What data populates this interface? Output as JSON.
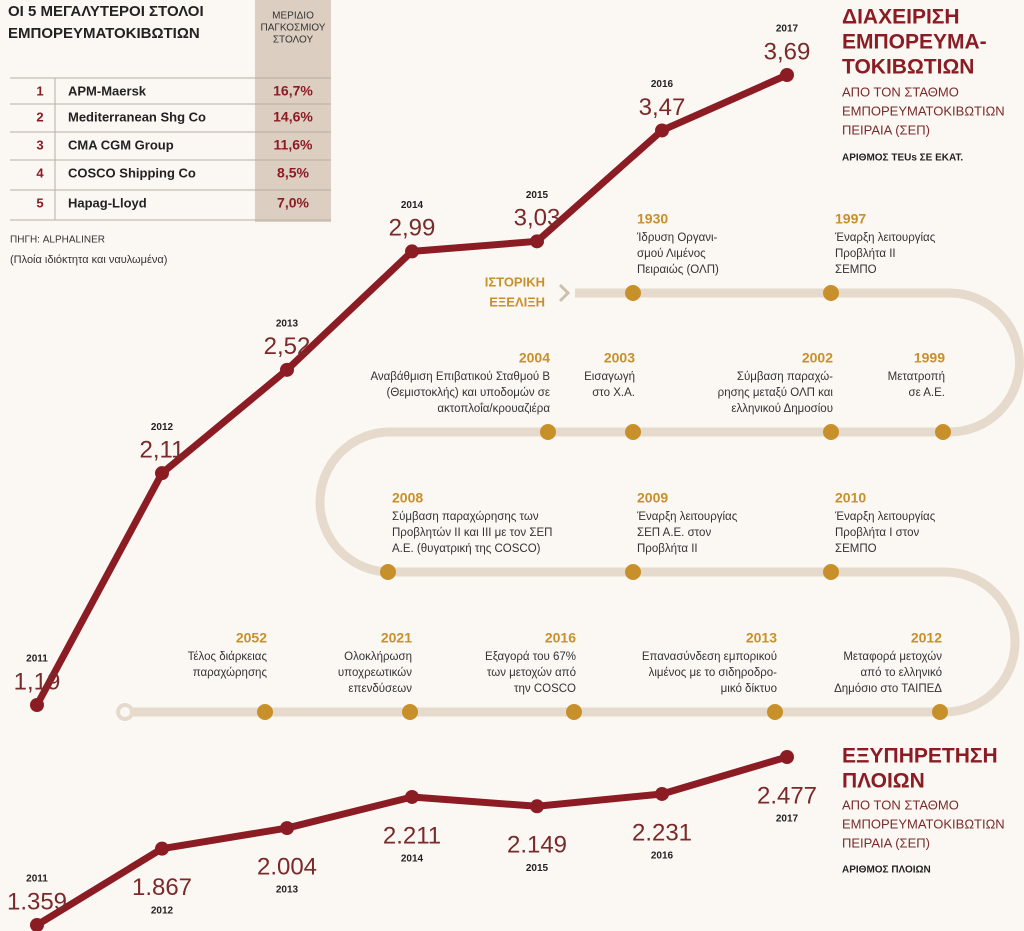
{
  "chart_data": [
    {
      "type": "line",
      "title": [
        "ΔΙΑΧΕΙΡΙΣΗ",
        "ΕΜΠΟΡΕΥΜΑ-",
        "ΤΟΚΙΒΩΤΙΩΝ"
      ],
      "subtitle": [
        "ΑΠΟ ΤΟΝ ΣΤΑΘΜΟ",
        "ΕΜΠΟΡΕΥΜΑΤΟΚΙΒΩΤΙΩΝ",
        "ΠΕΙΡΑΙΑ (ΣΕΠ)"
      ],
      "unit_label": "ΑΡΙΘΜΟΣ TEUs ΣΕ ΕΚΑΤ.",
      "x": [
        2011,
        2012,
        2013,
        2014,
        2015,
        2016,
        2017
      ],
      "values": [
        1.19,
        2.11,
        2.52,
        2.99,
        3.03,
        3.47,
        3.69
      ],
      "value_labels": [
        "1,19",
        "2,11",
        "2,52",
        "2,99",
        "3,03",
        "3,47",
        "3,69"
      ],
      "color": "#8b1c24"
    },
    {
      "type": "line",
      "title": [
        "ΕΞΥΠΗΡΕΤΗΣΗ",
        "ΠΛΟΙΩΝ"
      ],
      "subtitle": [
        "ΑΠΟ ΤΟΝ ΣΤΑΘΜΟ",
        "ΕΜΠΟΡΕΥΜΑΤΟΚΙΒΩΤΙΩΝ",
        "ΠΕΙΡΑΙΑ (ΣΕΠ)"
      ],
      "unit_label": "ΑΡΙΘΜΟΣ ΠΛΟΙΩΝ",
      "x": [
        2011,
        2012,
        2013,
        2014,
        2015,
        2016,
        2017
      ],
      "values": [
        1359,
        1867,
        2004,
        2211,
        2149,
        2231,
        2477
      ],
      "value_labels": [
        "1.359",
        "1.867",
        "2.004",
        "2.211",
        "2.149",
        "2.231",
        "2.477"
      ],
      "color": "#8b1c24"
    }
  ],
  "table": {
    "title": [
      "ΟΙ 5 ΜΕΓΑΛΥΤΕΡΟΙ ΣΤΟΛΟΙ",
      "ΕΜΠΟΡΕΥΜΑΤΟΚΙΒΩΤΙΩΝ"
    ],
    "header": [
      "ΜΕΡΙΔΙΟ",
      "ΠΑΓΚΟΣΜΙΟΥ",
      "ΣΤΟΛΟΥ"
    ],
    "rows": [
      [
        "1",
        "APM-Maersk",
        "16,7%"
      ],
      [
        "2",
        "Mediterranean Shg Co",
        "14,6%"
      ],
      [
        "3",
        "CMA CGM Group",
        "11,6%"
      ],
      [
        "4",
        "COSCO Shipping Co",
        "8,5%"
      ],
      [
        "5",
        "Hapag-Lloyd",
        "7,0%"
      ]
    ],
    "source": "ΠΗΓΗ: ALPHALINER",
    "note": "(Πλοία ιδιόκτητα και ναυλωμένα)"
  },
  "timeline": {
    "label": [
      "ΙΣΤΟΡΙΚΗ",
      "ΕΞΕΛΙΞΗ"
    ],
    "events": [
      {
        "year": "1930",
        "text": [
          "Ίδρυση Οργανι-",
          "σμού Λιμένος",
          "Πειραιώς (ΟΛΠ)"
        ]
      },
      {
        "year": "1997",
        "text": [
          "Έναρξη λειτουργίας",
          "Προβλήτα ΙΙ",
          "ΣΕΜΠΟ"
        ]
      },
      {
        "year": "2004",
        "text": [
          "Αναβάθμιση Επιβατικού Σταθμού Β",
          "(Θεμιστοκλής) και υποδομών σε",
          "ακτοπλοΐα/κρουαζιέρα"
        ]
      },
      {
        "year": "2003",
        "text": [
          "Εισαγωγή",
          "στο Χ.Α."
        ]
      },
      {
        "year": "2002",
        "text": [
          "Σύμβαση παραχώ-",
          "ρησης μεταξύ ΟΛΠ και",
          "ελληνικού Δημοσίου"
        ]
      },
      {
        "year": "1999",
        "text": [
          "Μετατροπή",
          "σε Α.Ε."
        ]
      },
      {
        "year": "2008",
        "text": [
          "Σύμβαση παραχώρησης των",
          "Προβλητών ΙΙ και ΙΙΙ με τον ΣΕΠ",
          "Α.Ε. (θυγατρική της COSCO)"
        ]
      },
      {
        "year": "2009",
        "text": [
          "Έναρξη λειτουργίας",
          "ΣΕΠ Α.Ε. στον",
          "Προβλήτα ΙΙ"
        ]
      },
      {
        "year": "2010",
        "text": [
          "Έναρξη λειτουργίας",
          "Προβλήτα Ι στον",
          "ΣΕΜΠΟ"
        ]
      },
      {
        "year": "2052",
        "text": [
          "Τέλος διάρκειας",
          "παραχώρησης"
        ]
      },
      {
        "year": "2021",
        "text": [
          "Ολοκλήρωση",
          "υποχρεωτικών",
          "επενδύσεων"
        ]
      },
      {
        "year": "2016",
        "text": [
          "Εξαγορά του 67%",
          "των μετοχών από",
          "την COSCO"
        ]
      },
      {
        "year": "2013",
        "text": [
          "Επανασύνδεση εμπορικού",
          "λιμένος με το σιδηροδρο-",
          "μικό δίκτυο"
        ]
      },
      {
        "year": "2012",
        "text": [
          "Μεταφορά μετοχών",
          "από το ελληνικό",
          "Δημόσιο στο ΤΑΙΠΕΔ"
        ]
      }
    ]
  }
}
